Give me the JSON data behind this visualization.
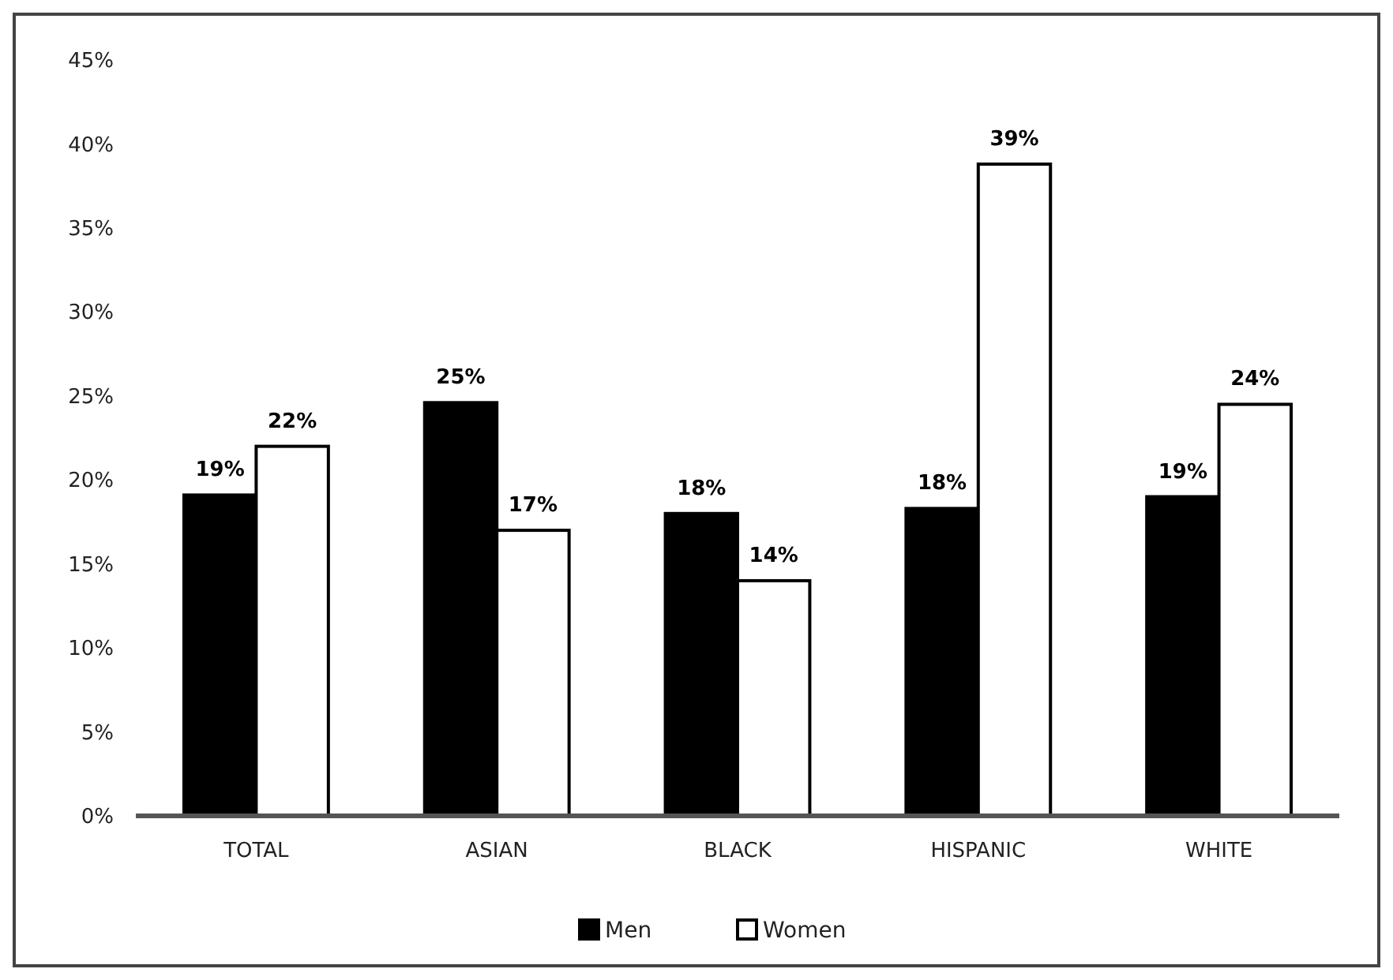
{
  "chart_data": {
    "type": "bar",
    "categories": [
      "TOTAL",
      "ASIAN",
      "BLACK",
      "HISPANIC",
      "WHITE"
    ],
    "series": [
      {
        "name": "Men",
        "color": "#000000",
        "values": [
          19.1,
          24.6,
          18.0,
          18.3,
          19.0
        ],
        "value_labels": [
          "19%",
          "25%",
          "18%",
          "18%",
          "19%"
        ]
      },
      {
        "name": "Women",
        "color": "#ffffff",
        "values": [
          22.0,
          17.0,
          14.0,
          38.8,
          24.5
        ],
        "value_labels": [
          "22%",
          "17%",
          "14%",
          "39%",
          "24%"
        ]
      }
    ],
    "ylim": [
      0,
      45
    ],
    "yticks": [
      {
        "value": 0,
        "label": "0%"
      },
      {
        "value": 5,
        "label": "5%"
      },
      {
        "value": 10,
        "label": "10%"
      },
      {
        "value": 15,
        "label": "15%"
      },
      {
        "value": 20,
        "label": "20%"
      },
      {
        "value": 25,
        "label": "25%"
      },
      {
        "value": 30,
        "label": "30%"
      },
      {
        "value": 35,
        "label": "35%"
      },
      {
        "value": 40,
        "label": "40%"
      },
      {
        "value": 45,
        "label": "45%"
      }
    ],
    "legend": "bottom"
  }
}
